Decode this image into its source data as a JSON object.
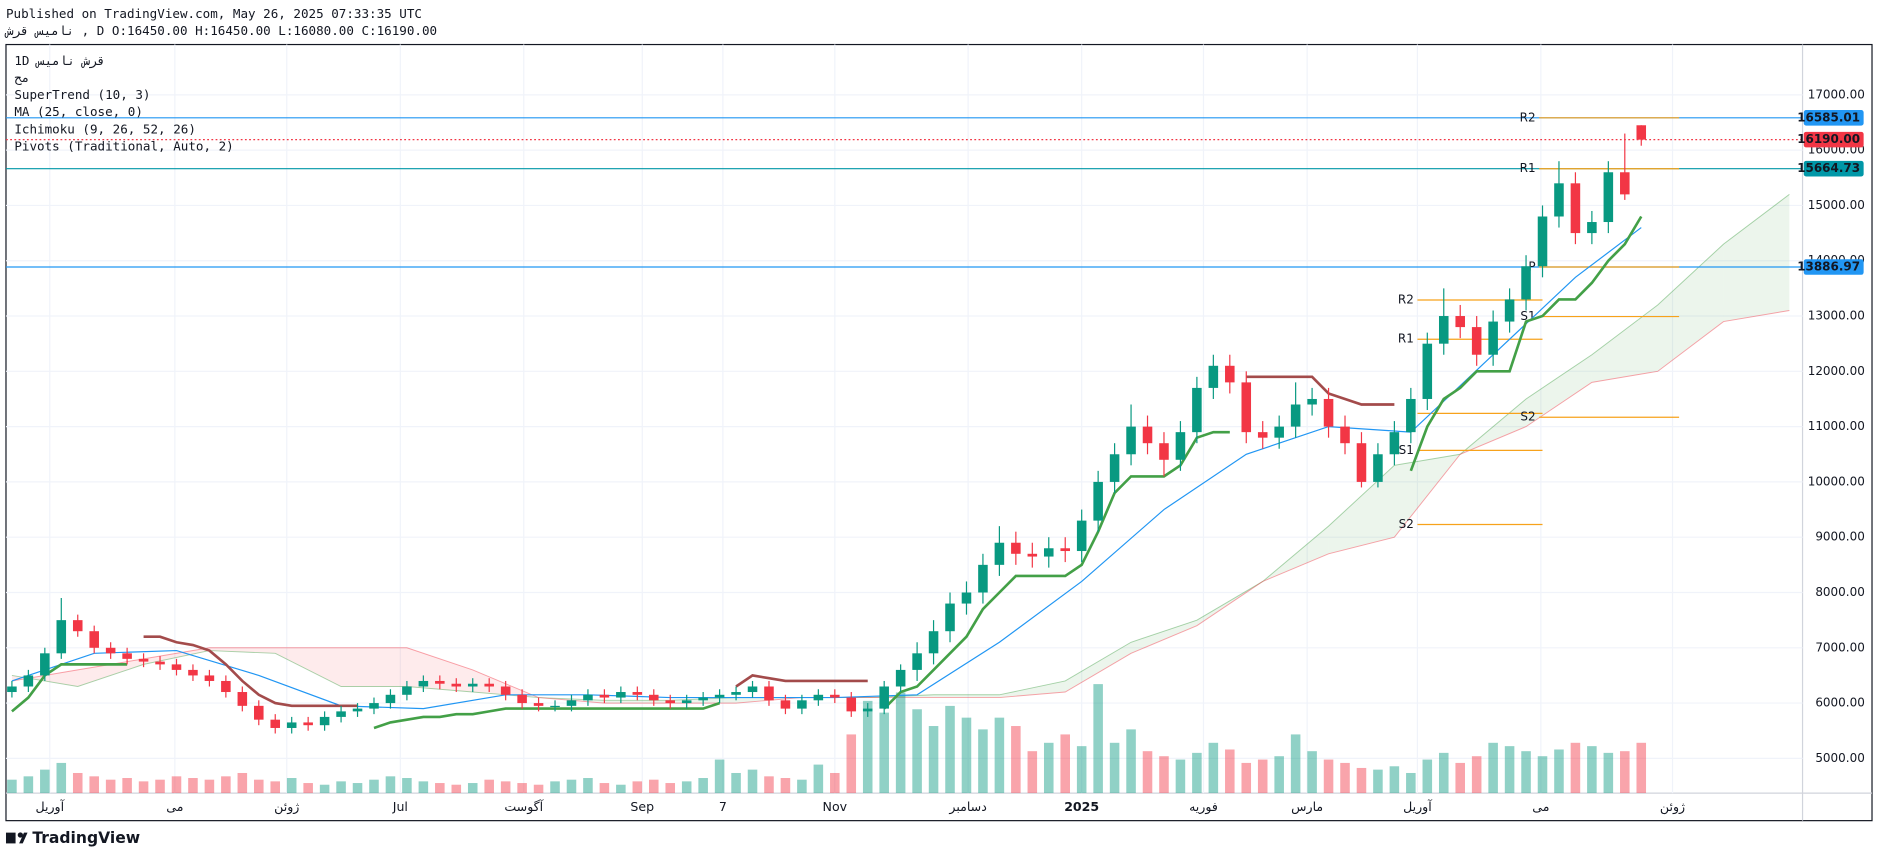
{
  "header": {
    "published": "Published on TradingView.com, May 26, 2025 07:33:35 UTC",
    "symbol_line": "نامیس  قرش  , D O:16450.00 H:16450.00 L:16080.00 C:16190.00"
  },
  "footer": {
    "brand": "TradingView"
  },
  "chart_data": {
    "type": "candlestick",
    "legend": [
      "1D   قرش  نامیس",
      "مح",
      "SuperTrend (10, 3)",
      "MA (25, close, 0)",
      "Ichimoku (9, 26, 52, 26)",
      "Pivots (Traditional, Auto, 2)"
    ],
    "up_color": "#089981",
    "down_color": "#f23645",
    "x": [
      0,
      1,
      2,
      3,
      4,
      5,
      6,
      7,
      8,
      9,
      10,
      11,
      12,
      13,
      14,
      15,
      16,
      17,
      18,
      19,
      20,
      21,
      22,
      23,
      24,
      25,
      26,
      27,
      28,
      29,
      30,
      31,
      32,
      33,
      34,
      35,
      36,
      37,
      38,
      39,
      40,
      41,
      42,
      43,
      44,
      45,
      46,
      47,
      48,
      49,
      50,
      51,
      52,
      53,
      54,
      55,
      56,
      57,
      58,
      59,
      60,
      61,
      62,
      63,
      64,
      65,
      66,
      67,
      68,
      69,
      70,
      71,
      72,
      73,
      74,
      75,
      76,
      77,
      78,
      79,
      80,
      81,
      82,
      83,
      84,
      85,
      86,
      87,
      88,
      89,
      90,
      91,
      92,
      93,
      94,
      95,
      96,
      97,
      98,
      99
    ],
    "open": [
      6200,
      6300,
      6500,
      6900,
      7500,
      7300,
      7000,
      6900,
      6800,
      6750,
      6700,
      6600,
      6500,
      6400,
      6200,
      5950,
      5700,
      5550,
      5650,
      5600,
      5750,
      5850,
      5900,
      6000,
      6150,
      6300,
      6400,
      6350,
      6300,
      6350,
      6300,
      6150,
      6000,
      5950,
      5950,
      6050,
      6150,
      6100,
      6200,
      6150,
      6050,
      6000,
      6050,
      6100,
      6150,
      6200,
      6300,
      6050,
      5900,
      6050,
      6150,
      6100,
      5850,
      5900,
      6300,
      6600,
      6900,
      7300,
      7800,
      8000,
      8500,
      8900,
      8700,
      8650,
      8800,
      8750,
      9300,
      10000,
      10500,
      11000,
      10700,
      10400,
      10900,
      11700,
      12100,
      11800,
      10900,
      10800,
      11000,
      11400,
      11500,
      11000,
      10700,
      10000,
      10500,
      10900,
      11500,
      12500,
      13000,
      12800,
      12300,
      12900,
      13300,
      13900,
      14800,
      15400,
      14500,
      14700,
      15600,
      16450
    ],
    "high": [
      6400,
      6600,
      7000,
      7900,
      7600,
      7400,
      7100,
      7000,
      6900,
      6850,
      6800,
      6700,
      6600,
      6500,
      6300,
      6050,
      5800,
      5750,
      5750,
      5850,
      5950,
      6000,
      6100,
      6250,
      6400,
      6500,
      6500,
      6450,
      6450,
      6450,
      6400,
      6250,
      6100,
      6050,
      6150,
      6250,
      6250,
      6300,
      6300,
      6250,
      6150,
      6150,
      6200,
      6250,
      6300,
      6400,
      6400,
      6150,
      6150,
      6250,
      6250,
      6200,
      6000,
      6400,
      6700,
      7100,
      7500,
      8000,
      8200,
      8700,
      9200,
      9100,
      8900,
      9000,
      9000,
      9500,
      10200,
      10700,
      11400,
      11200,
      10900,
      11100,
      11900,
      12300,
      12300,
      12000,
      11100,
      11200,
      11800,
      11700,
      11700,
      11200,
      10900,
      10700,
      11100,
      11700,
      12700,
      13500,
      13200,
      13000,
      13100,
      13500,
      14100,
      15000,
      15800,
      15600,
      14900,
      15800,
      16300,
      16450
    ],
    "low": [
      6100,
      6200,
      6400,
      6800,
      7200,
      6900,
      6800,
      6700,
      6650,
      6600,
      6500,
      6400,
      6300,
      6100,
      5850,
      5600,
      5450,
      5450,
      5500,
      5500,
      5650,
      5750,
      5800,
      5900,
      6050,
      6200,
      6250,
      6200,
      6200,
      6200,
      6050,
      5900,
      5850,
      5850,
      5850,
      5950,
      6000,
      6000,
      6050,
      5950,
      5900,
      5900,
      5950,
      6000,
      6050,
      6100,
      5950,
      5800,
      5800,
      5950,
      6000,
      5750,
      5750,
      5800,
      6200,
      6400,
      6700,
      7100,
      7600,
      7800,
      8300,
      8500,
      8450,
      8450,
      8550,
      8550,
      9100,
      9800,
      10300,
      10500,
      10100,
      10200,
      10700,
      11500,
      11600,
      10700,
      10600,
      10600,
      10800,
      11200,
      10800,
      10500,
      9900,
      9900,
      10300,
      10700,
      11300,
      12300,
      12600,
      12100,
      12100,
      12700,
      13100,
      13700,
      14600,
      14300,
      14300,
      14500,
      15100,
      16080
    ],
    "close": [
      6300,
      6500,
      6900,
      7500,
      7300,
      7000,
      6900,
      6800,
      6750,
      6700,
      6600,
      6500,
      6400,
      6200,
      5950,
      5700,
      5550,
      5650,
      5600,
      5750,
      5850,
      5900,
      6000,
      6150,
      6300,
      6400,
      6350,
      6300,
      6350,
      6300,
      6150,
      6000,
      5950,
      5950,
      6050,
      6150,
      6100,
      6200,
      6150,
      6050,
      6000,
      6050,
      6100,
      6150,
      6200,
      6300,
      6050,
      5900,
      6050,
      6150,
      6100,
      5850,
      5900,
      6300,
      6600,
      6900,
      7300,
      7800,
      8000,
      8500,
      8900,
      8700,
      8650,
      8800,
      8750,
      9300,
      10000,
      10500,
      11000,
      10700,
      10400,
      10900,
      11700,
      12100,
      11800,
      10900,
      10800,
      11000,
      11400,
      11500,
      11000,
      10700,
      10000,
      10500,
      10900,
      11500,
      12500,
      13000,
      12800,
      12300,
      12900,
      13300,
      13900,
      14800,
      15400,
      14500,
      14700,
      15600,
      15200,
      16190
    ],
    "volume": [
      8,
      10,
      14,
      18,
      12,
      10,
      8,
      9,
      7,
      8,
      10,
      9,
      8,
      10,
      12,
      8,
      7,
      9,
      6,
      5,
      7,
      6,
      8,
      10,
      9,
      7,
      6,
      5,
      6,
      8,
      7,
      6,
      5,
      7,
      8,
      9,
      6,
      5,
      7,
      8,
      6,
      7,
      9,
      20,
      12,
      14,
      10,
      9,
      8,
      17,
      12,
      35,
      55,
      48,
      60,
      50,
      40,
      52,
      45,
      38,
      45,
      40,
      25,
      30,
      35,
      28,
      65,
      30,
      38,
      25,
      22,
      20,
      24,
      30,
      26,
      18,
      20,
      22,
      35,
      25,
      20,
      18,
      15,
      14,
      16,
      12,
      20,
      24,
      18,
      22,
      30,
      28,
      25,
      22,
      26,
      30,
      28,
      24,
      25,
      30
    ],
    "supertrend_up": [
      5850,
      6100,
      6500,
      6700,
      6700,
      6700,
      6700,
      6700,
      null,
      null,
      null,
      null,
      null,
      null,
      null,
      null,
      null,
      null,
      null,
      null,
      null,
      null,
      5550,
      5650,
      5700,
      5750,
      5750,
      5800,
      5800,
      5850,
      5900,
      5900,
      5900,
      5900,
      5900,
      5900,
      5900,
      5900,
      5900,
      5900,
      5900,
      5900,
      5900,
      6000,
      null,
      null,
      null,
      null,
      null,
      null,
      null,
      null,
      null,
      5900,
      6200,
      6300,
      6600,
      6900,
      7200,
      7700,
      8000,
      8300,
      8300,
      8300,
      8300,
      8500,
      9100,
      9800,
      10100,
      10100,
      10100,
      10300,
      10800,
      10900,
      10900,
      null,
      null,
      null,
      null,
      null,
      null,
      null,
      null,
      null,
      null,
      10200,
      11000,
      11500,
      11700,
      12000,
      12000,
      12000,
      12900,
      13000,
      13300,
      13300,
      13600,
      14000,
      14300,
      14800
    ],
    "supertrend_down": [
      null,
      null,
      null,
      null,
      null,
      null,
      null,
      null,
      7200,
      7200,
      7100,
      7050,
      6950,
      6700,
      6400,
      6150,
      6000,
      5950,
      5950,
      5950,
      5950,
      5950,
      null,
      null,
      null,
      null,
      null,
      null,
      null,
      null,
      null,
      null,
      null,
      null,
      null,
      null,
      null,
      null,
      null,
      null,
      null,
      null,
      null,
      null,
      6300,
      6500,
      6450,
      6400,
      6400,
      6400,
      6400,
      6400,
      6400,
      null,
      null,
      null,
      null,
      null,
      null,
      null,
      null,
      null,
      null,
      null,
      null,
      null,
      null,
      null,
      null,
      null,
      null,
      null,
      null,
      null,
      null,
      11900,
      11900,
      11900,
      11900,
      11900,
      11600,
      11500,
      11400,
      11400,
      11400,
      null,
      null,
      null,
      null,
      null,
      null,
      null,
      null,
      null,
      null,
      null,
      null,
      null,
      null,
      null
    ],
    "ma": {
      "x": [
        0,
        5,
        10,
        15,
        20,
        25,
        30,
        35,
        40,
        45,
        50,
        55,
        60,
        65,
        70,
        75,
        80,
        85,
        90,
        95,
        99
      ],
      "values": [
        6400,
        6900,
        6950,
        6500,
        5950,
        5900,
        6150,
        6150,
        6100,
        6100,
        6100,
        6150,
        7100,
        8200,
        9500,
        10500,
        11000,
        10900,
        12300,
        13700,
        14600
      ]
    },
    "ichimoku": {
      "x": [
        0,
        4,
        8,
        12,
        16,
        20,
        24,
        28,
        32,
        36,
        40,
        44,
        48,
        52,
        56,
        60,
        64,
        68,
        72,
        76,
        80,
        84,
        88,
        92,
        96,
        100,
        104,
        108
      ],
      "span_a": [
        6500,
        6300,
        6700,
        6950,
        6900,
        6300,
        6300,
        6200,
        6100,
        6050,
        6050,
        6100,
        6100,
        6100,
        6150,
        6150,
        6400,
        7100,
        7500,
        8200,
        9200,
        10300,
        10500,
        11500,
        12300,
        13200,
        14300,
        15200
      ],
      "span_b": [
        6400,
        6600,
        6800,
        7000,
        7000,
        7000,
        7000,
        6600,
        6100,
        6000,
        6000,
        6000,
        6100,
        6100,
        6100,
        6100,
        6200,
        6900,
        7400,
        8200,
        8700,
        9000,
        10500,
        11000,
        11800,
        12000,
        12900,
        13100
      ]
    },
    "pivot_color": "#f7a21b",
    "pivots": [
      {
        "x_start": 85.4,
        "x_end": 93,
        "levels": [
          {
            "label": "R2",
            "value": 13290
          },
          {
            "label": "R1",
            "value": 12580
          },
          {
            "label": "P",
            "value": 11240
          },
          {
            "label": "S1",
            "value": 10570
          },
          {
            "label": "S2",
            "value": 9230
          }
        ]
      },
      {
        "x_start": 92.8,
        "x_end": 101.3,
        "levels": [
          {
            "label": "R2",
            "value": 16585
          },
          {
            "label": "R1",
            "value": 15664
          },
          {
            "label": "P",
            "value": 13887
          },
          {
            "label": "S1",
            "value": 12990
          },
          {
            "label": "S2",
            "value": 11170
          }
        ]
      }
    ],
    "levels": [
      {
        "value": 16585.01,
        "label": "16585.01",
        "color": "#2196f3",
        "dashed": false
      },
      {
        "value": 16190,
        "label": "16190.00",
        "color": "#f23645",
        "dashed": true
      },
      {
        "value": 15664.73,
        "label": "15664.73",
        "color": "#0097a7",
        "dashed": false
      },
      {
        "value": 13886.97,
        "label": "13886.97",
        "color": "#2196f3",
        "dashed": false
      }
    ],
    "xlim": [
      -0.36,
      108.8
    ],
    "ylim": [
      4372,
      17910
    ],
    "yticks": [
      {
        "value": 5000,
        "label": "5000.00"
      },
      {
        "value": 6000,
        "label": "6000.00"
      },
      {
        "value": 7000,
        "label": "7000.00"
      },
      {
        "value": 8000,
        "label": "8000.00"
      },
      {
        "value": 9000,
        "label": "9000.00"
      },
      {
        "value": 10000,
        "label": "10000.00"
      },
      {
        "value": 11000,
        "label": "11000.00"
      },
      {
        "value": 12000,
        "label": "12000.00"
      },
      {
        "value": 13000,
        "label": "13000.00"
      },
      {
        "value": 14000,
        "label": "14000.00"
      },
      {
        "value": 15000,
        "label": "15000.00"
      },
      {
        "value": 16000,
        "label": "16000.00"
      },
      {
        "value": 17000,
        "label": "17000.00"
      }
    ],
    "xticks": [
      {
        "value": 2.3,
        "label": "آوریل"
      },
      {
        "value": 9.9,
        "label": "می"
      },
      {
        "value": 16.7,
        "label": "ژوئن"
      },
      {
        "value": 23.6,
        "label": "Jul"
      },
      {
        "value": 31.1,
        "label": "آگوست"
      },
      {
        "value": 38.3,
        "label": "Sep"
      },
      {
        "value": 43.2,
        "label": "7"
      },
      {
        "value": 50,
        "label": "Nov"
      },
      {
        "value": 58.1,
        "label": "دسامبر"
      },
      {
        "value": 65,
        "label": "2025"
      },
      {
        "value": 72.4,
        "label": "فوریه"
      },
      {
        "value": 78.7,
        "label": "مارس"
      },
      {
        "value": 85.4,
        "label": "آوریل"
      },
      {
        "value": 92.9,
        "label": "می"
      },
      {
        "value": 100.9,
        "label": "ژوئن"
      }
    ],
    "grid": true
  }
}
